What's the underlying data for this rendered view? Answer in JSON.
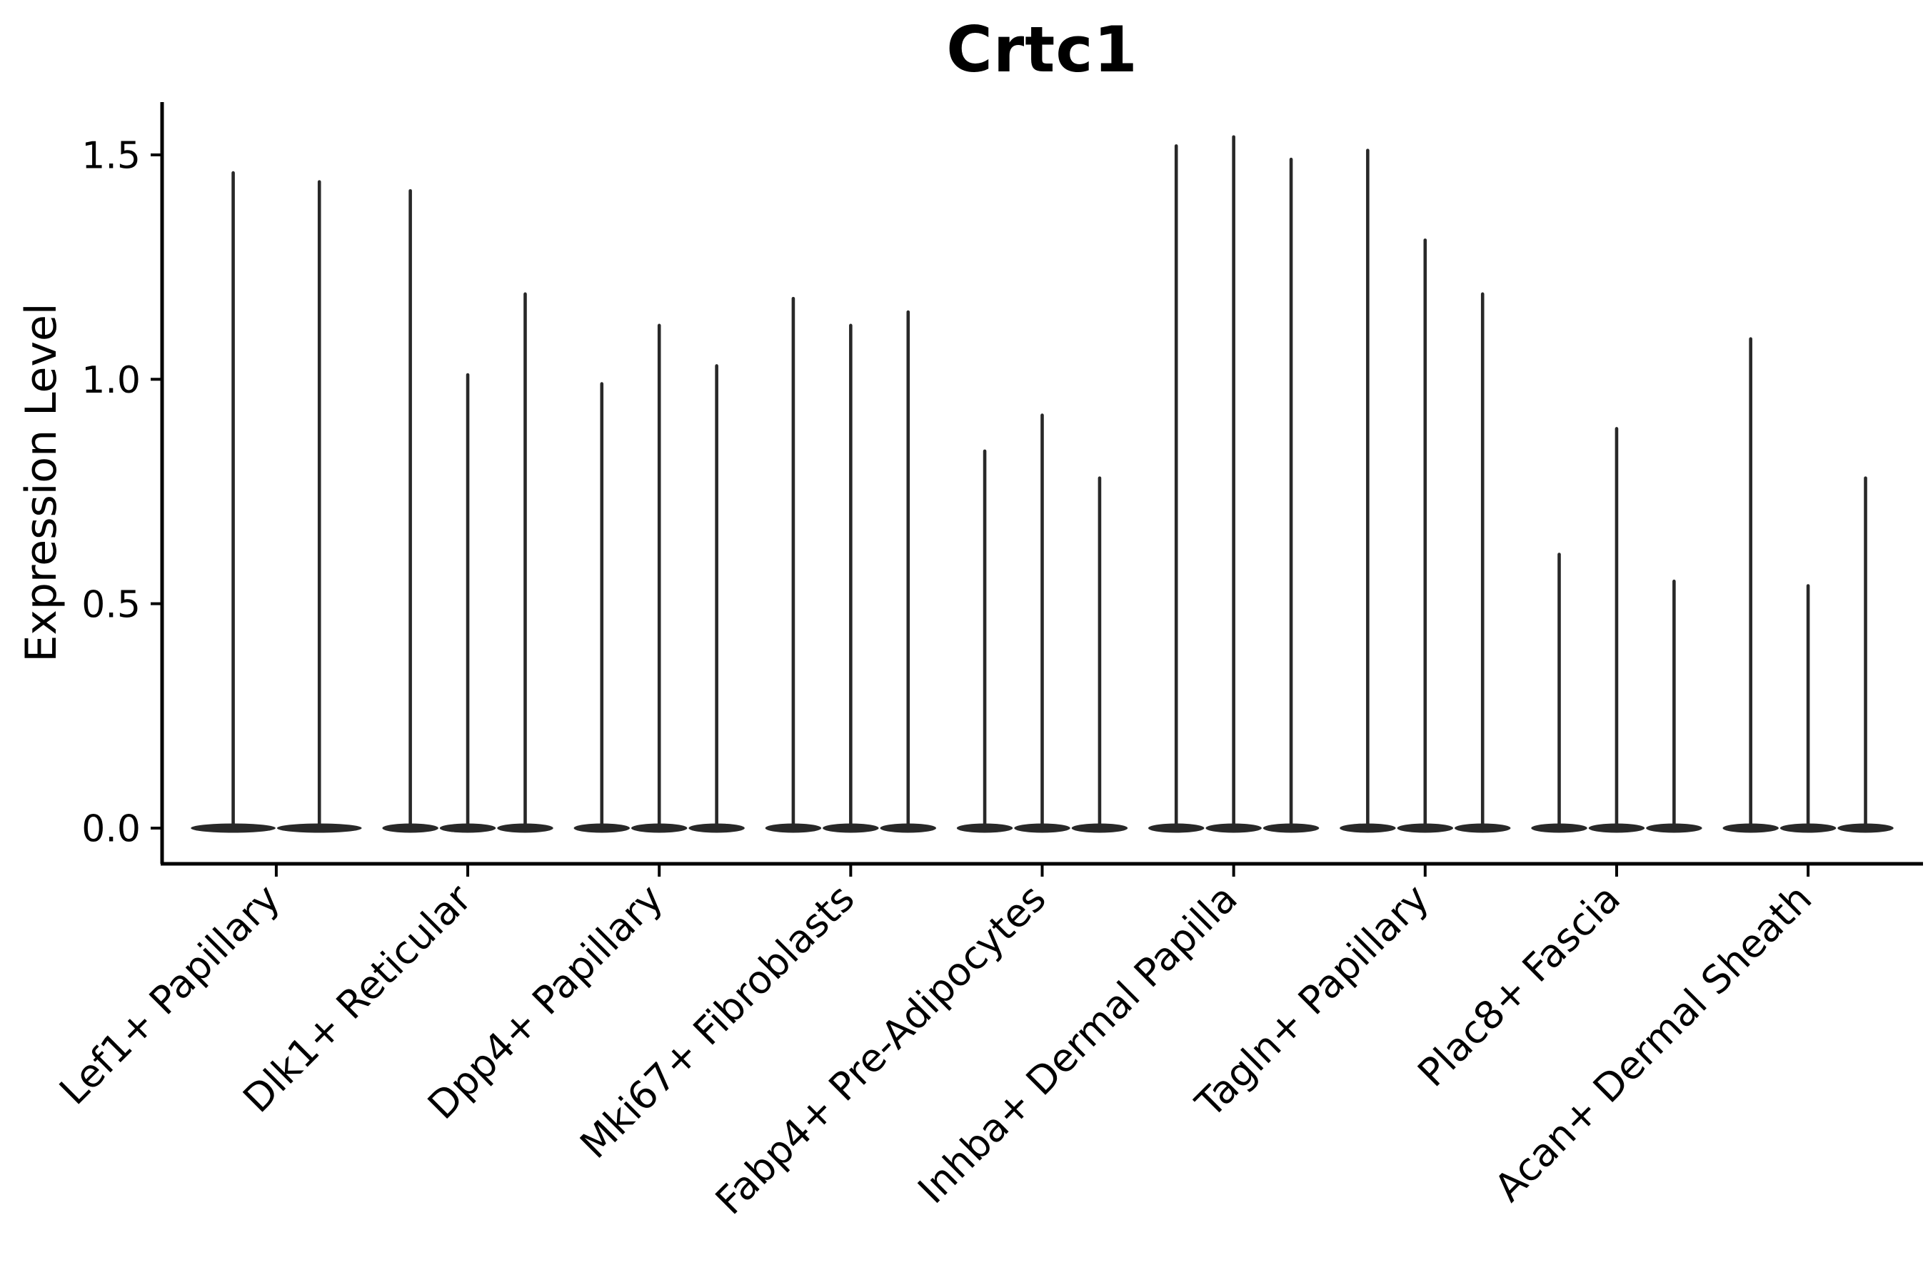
{
  "chart_data": {
    "type": "violin",
    "title": "Crtc1",
    "ylabel": "Expression Level",
    "xlabel": "",
    "y_tick_values": [
      0.0,
      0.5,
      1.0,
      1.5
    ],
    "y_tick_labels": [
      "0.0",
      "0.5",
      "1.0",
      "1.5"
    ],
    "ylim": [
      -0.08,
      1.62
    ],
    "grid": false,
    "legend_position": "none",
    "background_color": "#ffffff",
    "axis_color": "#000000",
    "violin_color": "#282828",
    "x_tick_label_rotation_deg": 45,
    "categories": [
      "Lef1+ Papillary",
      "Dlk1+ Reticular",
      "Dpp4+ Papillary",
      "Mki67+ Fibroblasts",
      "Fabp4+ Pre-Adipocytes",
      "Inhba+ Dermal Papilla",
      "Tagln+ Papillary",
      "Plac8+ Fascia",
      "Acan+ Dermal Sheath"
    ],
    "groups": [
      {
        "label": "Lef1+ Papillary",
        "baseline": 0.0,
        "violin_maxima": [
          1.46,
          1.44
        ]
      },
      {
        "label": "Dlk1+ Reticular",
        "baseline": 0.0,
        "violin_maxima": [
          1.42,
          1.01,
          1.19
        ]
      },
      {
        "label": "Dpp4+ Papillary",
        "baseline": 0.0,
        "violin_maxima": [
          0.99,
          1.12,
          1.03
        ]
      },
      {
        "label": "Mki67+ Fibroblasts",
        "baseline": 0.0,
        "violin_maxima": [
          1.18,
          1.12,
          1.15
        ]
      },
      {
        "label": "Fabp4+ Pre-Adipocytes",
        "baseline": 0.0,
        "violin_maxima": [
          0.84,
          0.92,
          0.78
        ]
      },
      {
        "label": "Inhba+ Dermal Papilla",
        "baseline": 0.0,
        "violin_maxima": [
          1.52,
          1.54,
          1.49
        ]
      },
      {
        "label": "Tagln+ Papillary",
        "baseline": 0.0,
        "violin_maxima": [
          1.51,
          1.31,
          1.19
        ]
      },
      {
        "label": "Plac8+ Fascia",
        "baseline": 0.0,
        "violin_maxima": [
          0.61,
          0.89,
          0.55
        ]
      },
      {
        "label": "Acan+ Dermal Sheath",
        "baseline": 0.0,
        "violin_maxima": [
          1.09,
          0.54,
          0.78
        ]
      }
    ]
  }
}
